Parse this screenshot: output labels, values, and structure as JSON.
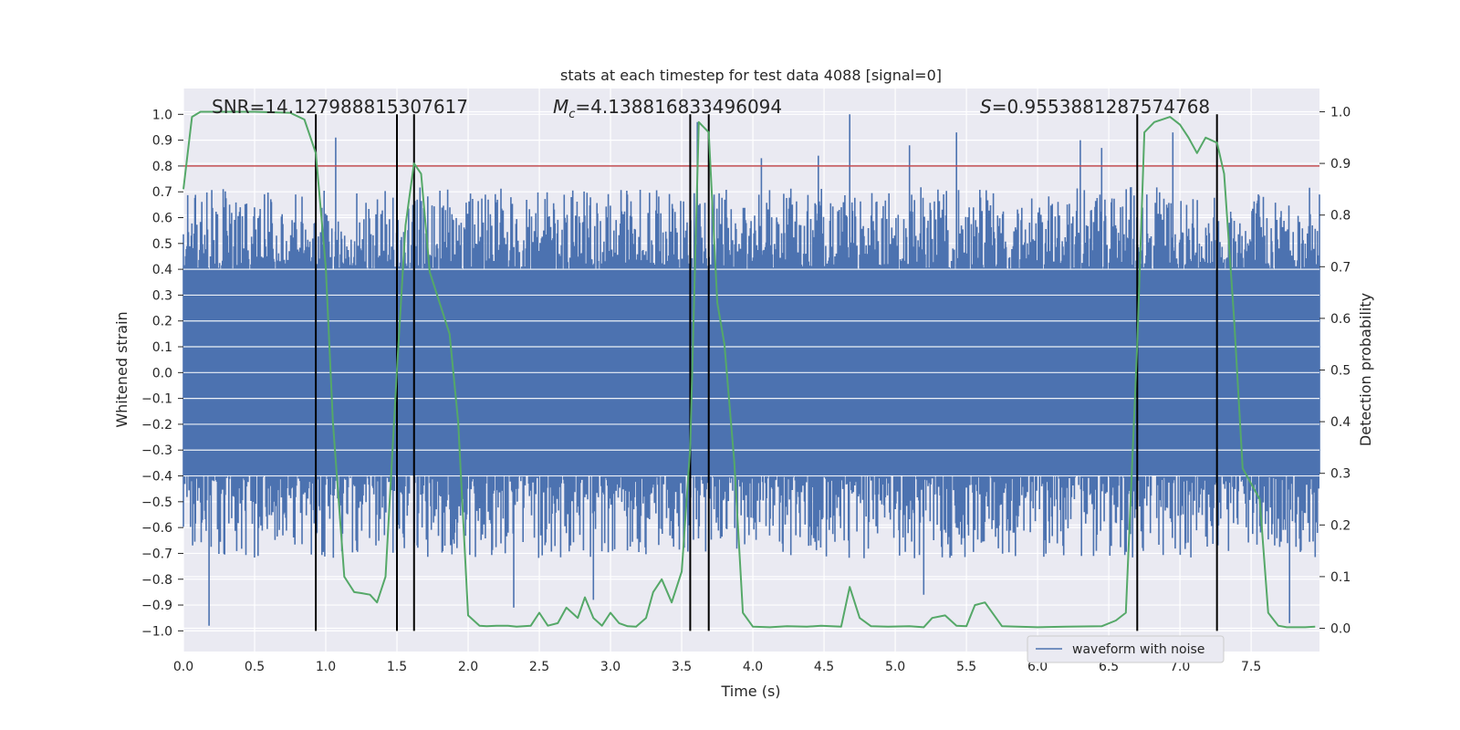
{
  "chart_data": {
    "type": "line",
    "title": "stats at each timestep for test data 4088 [signal=0]",
    "xlabel": "Time (s)",
    "ylabel_left": "Whitened strain",
    "ylabel_right": "Detection probability",
    "xlim": [
      0,
      7.98
    ],
    "ylim_left": [
      -1.08,
      1.1
    ],
    "ylim_right": [
      -0.045,
      1.045
    ],
    "x_ticks": [
      0.0,
      0.5,
      1.0,
      1.5,
      2.0,
      2.5,
      3.0,
      3.5,
      4.0,
      4.5,
      5.0,
      5.5,
      6.0,
      6.5,
      7.0,
      7.5
    ],
    "x_tick_labels": [
      "0.0",
      "0.5",
      "1.0",
      "1.5",
      "2.0",
      "2.5",
      "3.0",
      "3.5",
      "4.0",
      "4.5",
      "5.0",
      "5.5",
      "6.0",
      "6.5",
      "7.0",
      "7.5"
    ],
    "y_left_ticks": [
      -1.0,
      -0.9,
      -0.8,
      -0.7,
      -0.6,
      -0.5,
      -0.4,
      -0.3,
      -0.2,
      -0.1,
      0.0,
      0.1,
      0.2,
      0.3,
      0.4,
      0.5,
      0.6,
      0.7,
      0.8,
      0.9,
      1.0
    ],
    "y_left_tick_labels": [
      "−1.0",
      "−0.9",
      "−0.8",
      "−0.7",
      "−0.6",
      "−0.5",
      "−0.4",
      "−0.3",
      "−0.2",
      "−0.1",
      "0.0",
      "0.1",
      "0.2",
      "0.3",
      "0.4",
      "0.5",
      "0.6",
      "0.7",
      "0.8",
      "0.9",
      "1.0"
    ],
    "y_right_ticks": [
      0.0,
      0.1,
      0.2,
      0.3,
      0.4,
      0.5,
      0.6,
      0.7,
      0.8,
      0.9,
      1.0
    ],
    "y_right_tick_labels": [
      "0.0",
      "0.1",
      "0.2",
      "0.3",
      "0.4",
      "0.5",
      "0.6",
      "0.7",
      "0.8",
      "0.9",
      "1.0"
    ],
    "annotations": {
      "snr": "SNR=14.127988815307617",
      "mc_symbol": "M",
      "mc_subscript": "c",
      "mc_value": "=4.138816833496094",
      "s_symbol": "S",
      "s_value": "=0.9553881287574768"
    },
    "legend": {
      "label": "waveform with noise",
      "placement": "lower-right"
    },
    "threshold": {
      "axis": "left",
      "y": 0.8,
      "color": "#c44e52"
    },
    "vertical_markers": {
      "x": [
        0.93,
        1.5,
        1.62,
        3.56,
        3.69,
        6.7,
        7.26
      ],
      "ymin": -1.0,
      "ymax": 1.0,
      "color": "#000000"
    },
    "series": [
      {
        "name": "waveform with noise",
        "axis": "left",
        "color": "#4c72b0",
        "kind": "noise-fill",
        "core_amplitude": 0.4,
        "typical_peak": 0.62,
        "spikes": [
          {
            "x": 0.18,
            "y": -0.98
          },
          {
            "x": 1.07,
            "y": 0.91
          },
          {
            "x": 2.32,
            "y": -0.91
          },
          {
            "x": 2.88,
            "y": -0.88
          },
          {
            "x": 3.61,
            "y": 0.97
          },
          {
            "x": 4.06,
            "y": 0.83
          },
          {
            "x": 4.46,
            "y": 0.84
          },
          {
            "x": 4.68,
            "y": 1.0
          },
          {
            "x": 5.1,
            "y": 0.88
          },
          {
            "x": 5.2,
            "y": -0.86
          },
          {
            "x": 5.43,
            "y": 0.93
          },
          {
            "x": 6.3,
            "y": 0.9
          },
          {
            "x": 6.45,
            "y": 0.87
          },
          {
            "x": 6.95,
            "y": 0.93
          },
          {
            "x": 7.77,
            "y": -0.97
          }
        ],
        "color_role": "blue"
      },
      {
        "name": "Detection probability",
        "axis": "right",
        "color": "#55a868",
        "x": [
          0.0,
          0.06,
          0.12,
          0.5,
          0.75,
          0.85,
          0.93,
          1.0,
          1.05,
          1.13,
          1.2,
          1.25,
          1.31,
          1.36,
          1.42,
          1.5,
          1.56,
          1.62,
          1.67,
          1.73,
          1.8,
          1.87,
          1.93,
          2.0,
          2.08,
          2.13,
          2.2,
          2.28,
          2.34,
          2.44,
          2.5,
          2.56,
          2.63,
          2.69,
          2.77,
          2.82,
          2.88,
          2.94,
          3.0,
          3.06,
          3.12,
          3.18,
          3.25,
          3.3,
          3.36,
          3.43,
          3.5,
          3.56,
          3.62,
          3.69,
          3.75,
          3.8,
          3.87,
          3.93,
          4.0,
          4.12,
          4.24,
          4.38,
          4.48,
          4.62,
          4.68,
          4.75,
          4.83,
          4.95,
          5.1,
          5.2,
          5.26,
          5.35,
          5.43,
          5.5,
          5.56,
          5.63,
          5.75,
          6.0,
          6.2,
          6.45,
          6.55,
          6.62,
          6.7,
          6.75,
          6.82,
          6.93,
          7.0,
          7.06,
          7.12,
          7.18,
          7.26,
          7.31,
          7.38,
          7.44,
          7.5,
          7.56,
          7.62,
          7.69,
          7.75,
          7.81,
          7.88,
          7.95
        ],
        "y": [
          0.85,
          0.99,
          1.0,
          1.0,
          0.998,
          0.985,
          0.92,
          0.7,
          0.4,
          0.1,
          0.07,
          0.068,
          0.065,
          0.05,
          0.1,
          0.5,
          0.78,
          0.9,
          0.88,
          0.69,
          0.63,
          0.57,
          0.4,
          0.025,
          0.005,
          0.004,
          0.005,
          0.005,
          0.003,
          0.005,
          0.03,
          0.005,
          0.01,
          0.04,
          0.02,
          0.06,
          0.02,
          0.005,
          0.03,
          0.01,
          0.004,
          0.003,
          0.02,
          0.07,
          0.095,
          0.05,
          0.11,
          0.35,
          0.98,
          0.96,
          0.63,
          0.55,
          0.32,
          0.03,
          0.003,
          0.002,
          0.004,
          0.003,
          0.005,
          0.003,
          0.08,
          0.02,
          0.004,
          0.003,
          0.004,
          0.002,
          0.02,
          0.025,
          0.005,
          0.004,
          0.045,
          0.05,
          0.004,
          0.002,
          0.003,
          0.004,
          0.015,
          0.03,
          0.55,
          0.96,
          0.98,
          0.99,
          0.975,
          0.95,
          0.92,
          0.95,
          0.94,
          0.88,
          0.6,
          0.31,
          0.28,
          0.25,
          0.03,
          0.005,
          0.002,
          0.002,
          0.002,
          0.003
        ]
      }
    ]
  }
}
